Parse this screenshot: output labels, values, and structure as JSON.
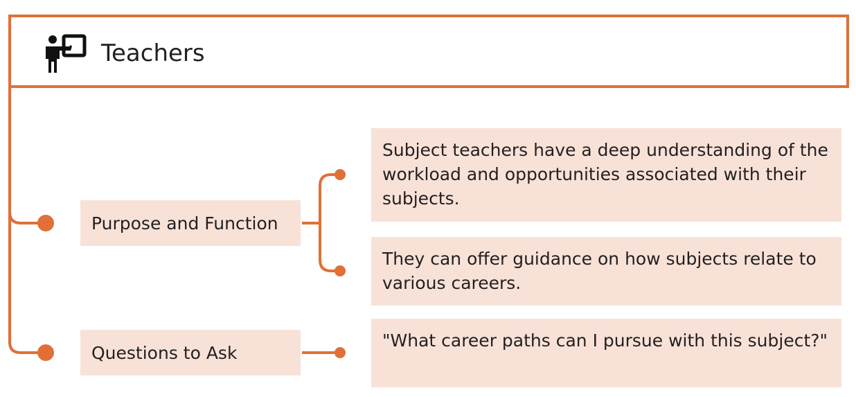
{
  "header": {
    "title": "Teachers",
    "icon": "teacher-presenting-icon"
  },
  "nodes": [
    {
      "label": "Purpose and Function",
      "details": [
        "Subject teachers have a deep understanding of the workload and opportunities associated with their subjects.",
        "They can offer guidance on how subjects relate to various careers."
      ]
    },
    {
      "label": "Questions to Ask",
      "details": [
        "\"What career paths can I pursue with this subject?\""
      ]
    }
  ],
  "colors": {
    "accent": "#e07038",
    "box_fill": "#f8e2d8",
    "text": "#231f20"
  }
}
